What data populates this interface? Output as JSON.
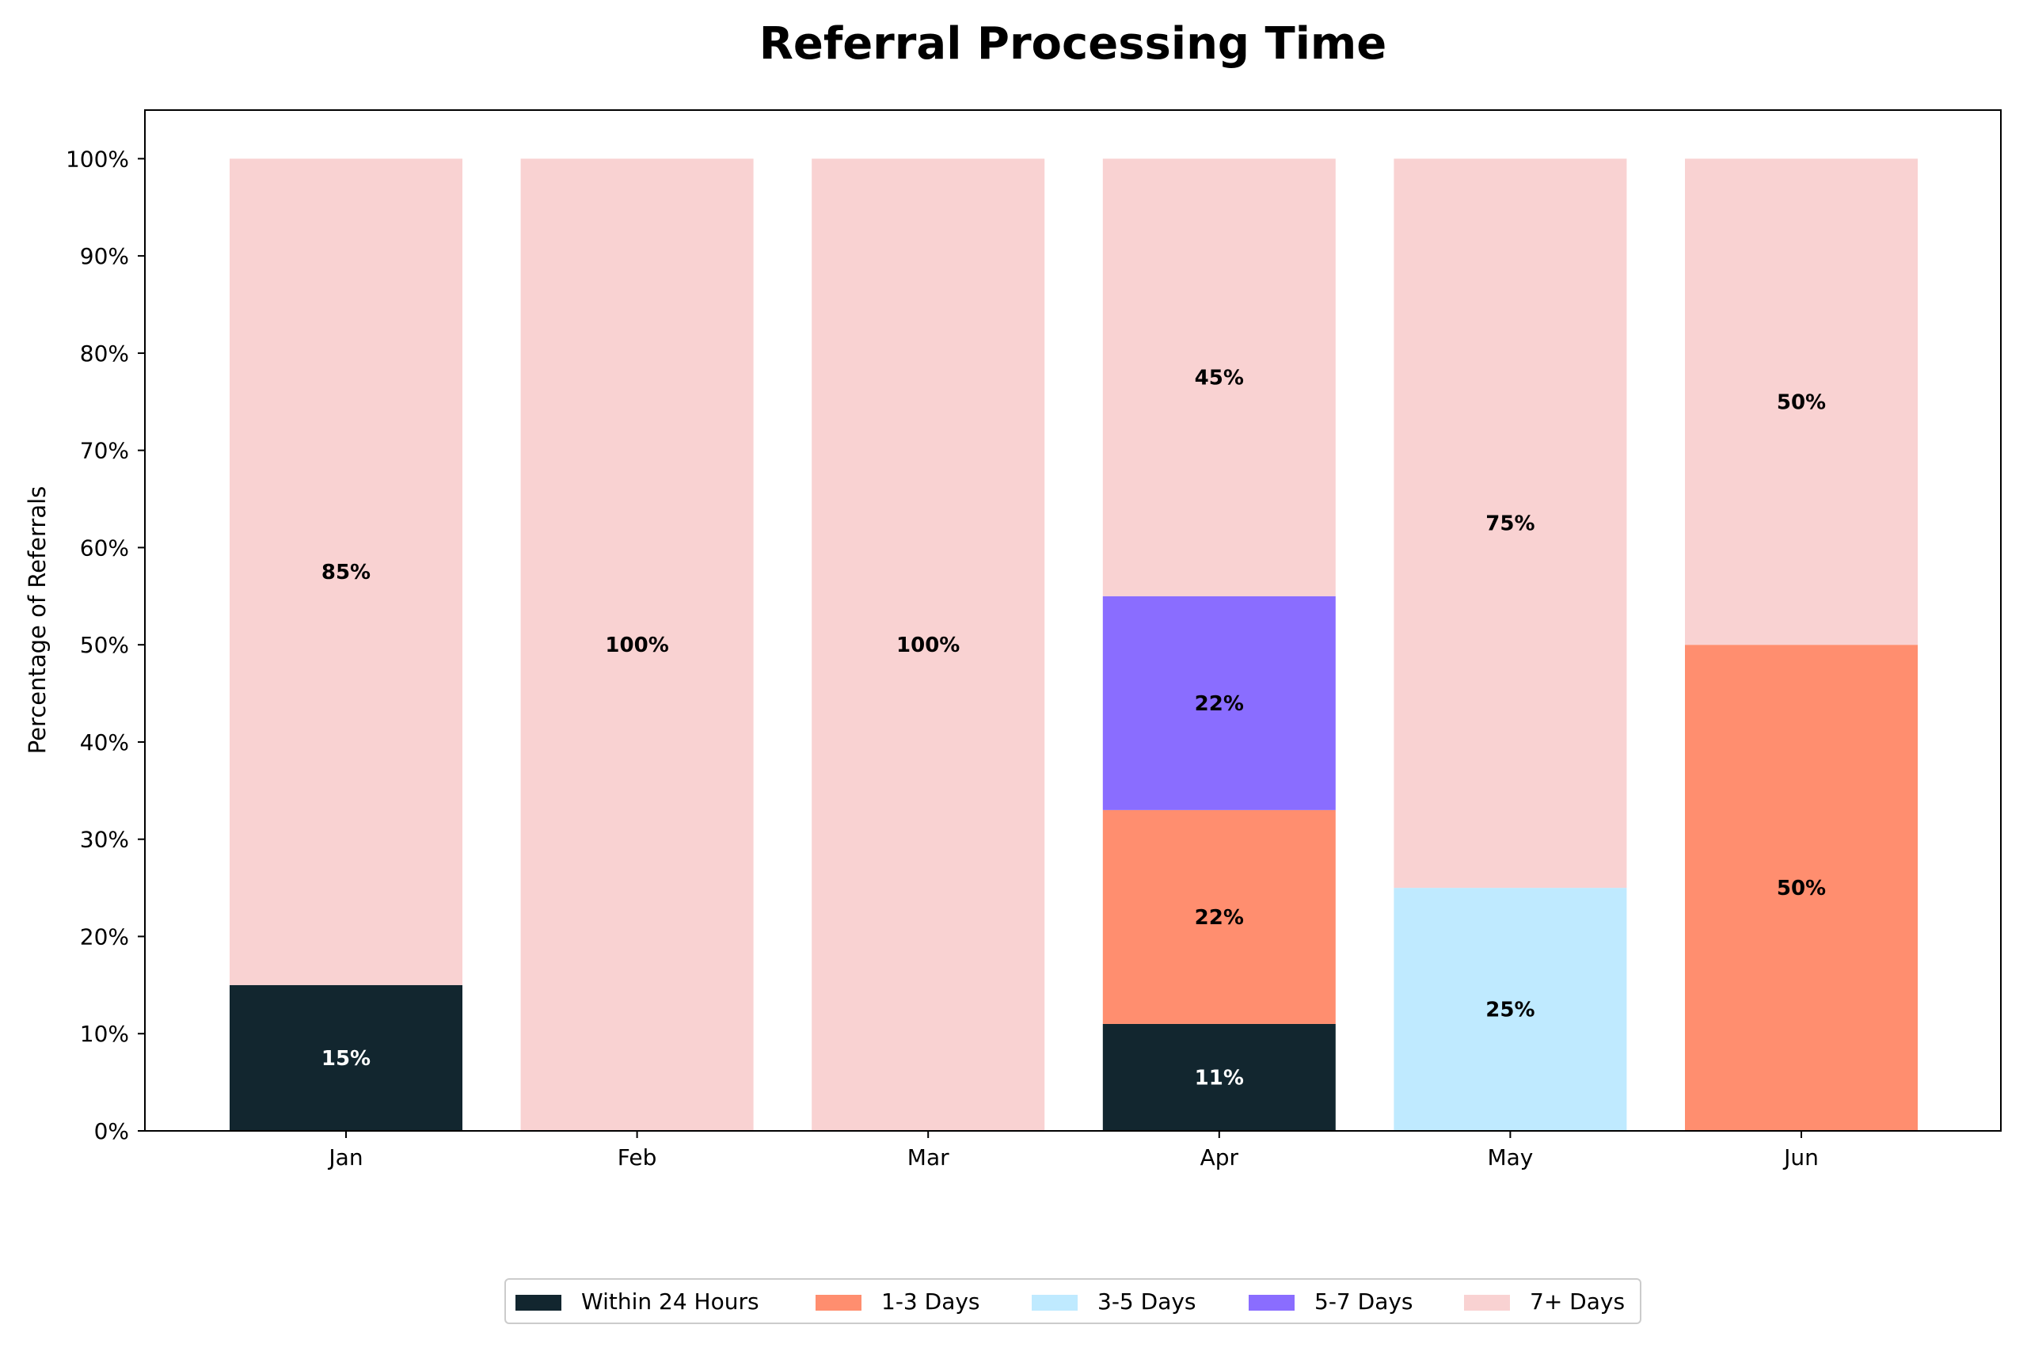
{
  "chart_data": {
    "type": "bar",
    "stacked": true,
    "title": "Referral Processing Time",
    "xlabel": "",
    "ylabel": "Percentage of Referrals",
    "ylim": [
      0,
      105
    ],
    "yticks": [
      "0%",
      "10%",
      "20%",
      "30%",
      "40%",
      "50%",
      "60%",
      "70%",
      "80%",
      "90%",
      "100%"
    ],
    "grid": false,
    "legend_position": "bottom-center",
    "categories": [
      "Jan",
      "Feb",
      "Mar",
      "Apr",
      "May",
      "Jun"
    ],
    "series": [
      {
        "name": "Within 24 Hours",
        "color": "#12262f",
        "label_color": "#ffffff",
        "values": [
          15,
          0,
          0,
          11,
          0,
          0
        ],
        "labels": [
          "15%",
          "",
          "",
          "11%",
          "",
          ""
        ]
      },
      {
        "name": "1-3 Days",
        "color": "#ff8e6f",
        "label_color": "#000000",
        "values": [
          0,
          0,
          0,
          22,
          0,
          50
        ],
        "labels": [
          "",
          "",
          "",
          "22%",
          "",
          "50%"
        ]
      },
      {
        "name": "3-5 Days",
        "color": "#bfeaff",
        "label_color": "#000000",
        "values": [
          0,
          0,
          0,
          0,
          25,
          0
        ],
        "labels": [
          "",
          "",
          "",
          "",
          "25%",
          ""
        ]
      },
      {
        "name": "5-7 Days",
        "color": "#8a6dff",
        "label_color": "#000000",
        "values": [
          0,
          0,
          0,
          22,
          0,
          0
        ],
        "labels": [
          "",
          "",
          "",
          "22%",
          "",
          ""
        ]
      },
      {
        "name": "7+ Days",
        "color": "#f9d2d2",
        "label_color": "#000000",
        "values": [
          85,
          100,
          100,
          45,
          75,
          50
        ],
        "labels": [
          "85%",
          "100%",
          "100%",
          "45%",
          "75%",
          "50%"
        ]
      }
    ]
  }
}
